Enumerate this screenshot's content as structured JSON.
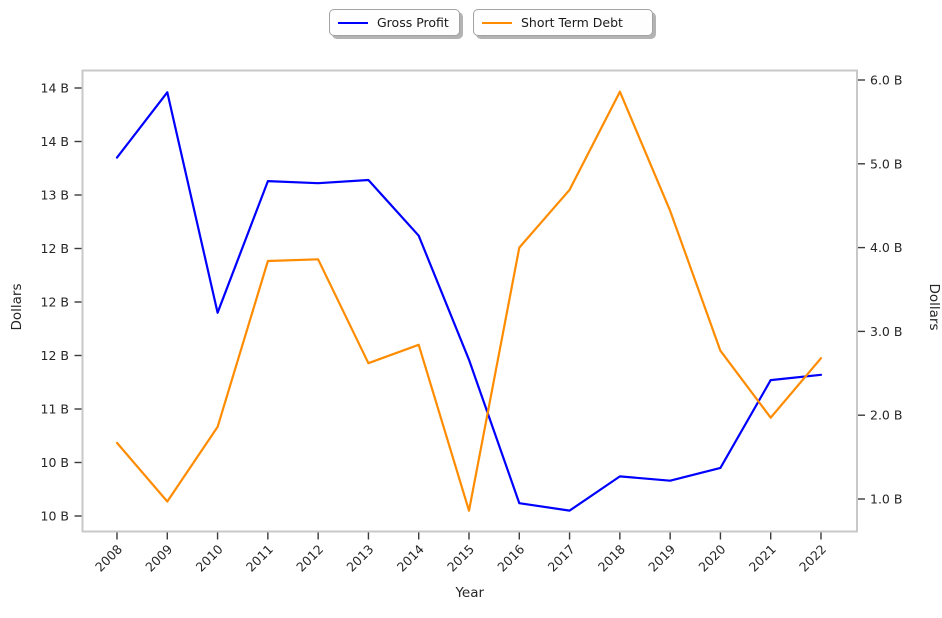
{
  "chart_data": {
    "type": "line",
    "title": "",
    "xlabel": "Year",
    "categories": [
      "2008",
      "2009",
      "2010",
      "2011",
      "2012",
      "2013",
      "2014",
      "2015",
      "2016",
      "2017",
      "2018",
      "2019",
      "2020",
      "2021",
      "2022"
    ],
    "series": [
      {
        "name": "Gross Profit",
        "axis": "left",
        "color": "#0000ff",
        "unit": "B USD",
        "values": [
          13.35,
          13.96,
          11.9,
          13.13,
          13.11,
          13.14,
          12.62,
          11.46,
          10.12,
          10.05,
          10.37,
          10.33,
          10.45,
          11.27,
          11.32
        ]
      },
      {
        "name": "Short Term Debt",
        "axis": "right",
        "color": "#ff8c00",
        "unit": "B USD",
        "values": [
          1.67,
          0.97,
          1.86,
          3.84,
          3.86,
          2.62,
          2.84,
          0.86,
          4.0,
          4.69,
          5.86,
          4.44,
          2.77,
          1.97,
          2.68
        ]
      }
    ],
    "left_axis": {
      "label": "Dollars",
      "range": [
        10.0,
        14.0
      ],
      "ticks": [
        {
          "value": 10.0,
          "label": "10 B"
        },
        {
          "value": 10.5,
          "label": "10 B"
        },
        {
          "value": 11.0,
          "label": "11 B"
        },
        {
          "value": 11.5,
          "label": "12 B"
        },
        {
          "value": 12.0,
          "label": "12 B"
        },
        {
          "value": 12.5,
          "label": "12 B"
        },
        {
          "value": 13.0,
          "label": "13 B"
        },
        {
          "value": 13.5,
          "label": "14 B"
        },
        {
          "value": 14.0,
          "label": "14 B"
        }
      ]
    },
    "right_axis": {
      "label": "Dollars",
      "range": [
        1.0,
        6.0
      ],
      "ticks": [
        {
          "value": 1.0,
          "label": "1.0 B"
        },
        {
          "value": 2.0,
          "label": "2.0 B"
        },
        {
          "value": 3.0,
          "label": "3.0 B"
        },
        {
          "value": 4.0,
          "label": "4.0 B"
        },
        {
          "value": 5.0,
          "label": "5.0 B"
        },
        {
          "value": 6.0,
          "label": "6.0 B"
        }
      ]
    },
    "x_axis": {
      "label": "Year",
      "tick_rotation_deg": 45
    },
    "grid": false,
    "legend_position": "top-center",
    "legend_style": "two separate fancy boxes with shadow"
  }
}
